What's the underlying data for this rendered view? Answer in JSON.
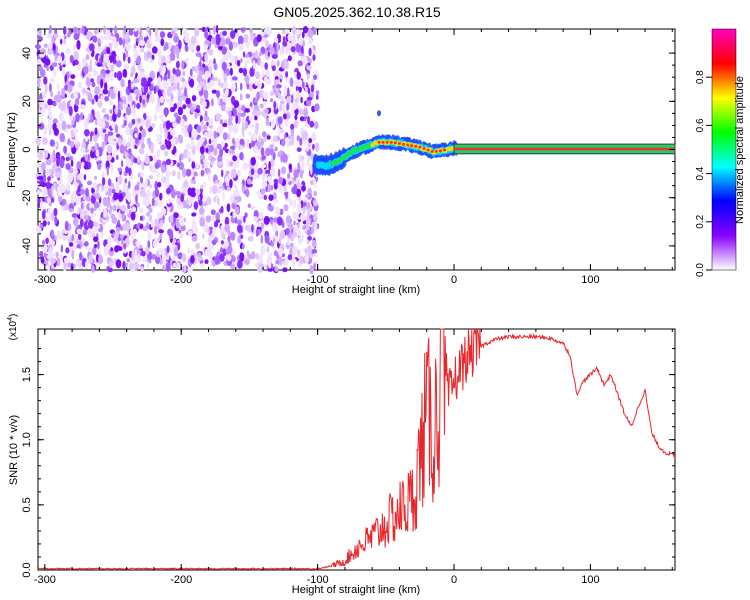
{
  "title": "GN05.2025.362.10.38.R15",
  "colors": {
    "spec_bg": "#ffffff",
    "snr_line": "#e8262b",
    "axis": "#000000",
    "band_outline": "#3a3a3a"
  },
  "chart_data": [
    {
      "type": "heatmap",
      "name": "spectrogram",
      "xlabel": "Height of straight line (km)",
      "ylabel": "Frequency (Hz)",
      "xlim": [
        -305,
        162
      ],
      "ylim": [
        -50,
        50
      ],
      "x_ticks": [
        -300,
        -200,
        -100,
        0,
        100
      ],
      "x_tick_labels": [
        "-300",
        "-200",
        "-100",
        "0",
        "100"
      ],
      "y_ticks": [
        -40,
        -20,
        0,
        20,
        40
      ],
      "y_tick_labels": [
        "-40",
        "-20",
        "0",
        "20",
        "40"
      ],
      "noise_region_km": [
        -305,
        -100
      ],
      "signal_track": {
        "x": [
          -102,
          -95,
          -85,
          -75,
          -65,
          -55,
          -45,
          -35,
          -25,
          -15,
          -5,
          0,
          50,
          100,
          162
        ],
        "y": [
          -6,
          -7,
          -5,
          -1,
          1,
          3,
          3,
          2,
          1,
          -1,
          0,
          0.5,
          0.5,
          0.5,
          0.5
        ]
      },
      "tone_band_hz": [
        -1.2,
        1.6
      ],
      "tone_start_km": 0,
      "colorbar": {
        "label": "Normalized spectral amplitude",
        "range": [
          0,
          1
        ],
        "ticks": [
          0.0,
          0.2,
          0.4,
          0.6,
          0.8
        ],
        "tick_labels": [
          "0.0",
          "0.2",
          "0.4",
          "0.6",
          "0.8"
        ],
        "colors": [
          "#ffffff",
          "#8a00ff",
          "#0000ff",
          "#00ffff",
          "#00ff00",
          "#ffff00",
          "#ff0000",
          "#ff00c0"
        ]
      }
    },
    {
      "type": "line",
      "name": "snr",
      "xlabel": "Height of straight line (km)",
      "ylabel": "SNR (10 * v/v)",
      "scale_label": "(x10",
      "scale_exponent": "4",
      "xlim": [
        -305,
        162
      ],
      "ylim": [
        0,
        1.85
      ],
      "x_ticks": [
        -300,
        -200,
        -100,
        0,
        100
      ],
      "x_tick_labels": [
        "-300",
        "-200",
        "-100",
        "0",
        "100"
      ],
      "y_ticks": [
        0,
        0.5,
        1.0,
        1.5
      ],
      "y_tick_labels": [
        "0.0",
        "0.5",
        "1.0",
        "1.5"
      ],
      "series": [
        {
          "x": [
            -305,
            -200,
            -100,
            -90,
            -80,
            -70,
            -60,
            -50,
            -40,
            -30,
            -25,
            -20,
            -15,
            -10,
            -5,
            0,
            10,
            20,
            30,
            40,
            50,
            60,
            70,
            80,
            85,
            90,
            95,
            100,
            105,
            110,
            115,
            120,
            125,
            130,
            135,
            140,
            145,
            150,
            155,
            162
          ],
          "y": [
            0.01,
            0.01,
            0.01,
            0.03,
            0.07,
            0.18,
            0.25,
            0.35,
            0.45,
            0.55,
            0.85,
            1.2,
            1.05,
            1.4,
            1.3,
            1.45,
            1.65,
            1.72,
            1.77,
            1.79,
            1.79,
            1.79,
            1.78,
            1.74,
            1.65,
            1.35,
            1.45,
            1.5,
            1.55,
            1.42,
            1.5,
            1.35,
            1.2,
            1.1,
            1.25,
            1.38,
            1.05,
            0.95,
            0.9,
            0.88
          ]
        }
      ]
    }
  ]
}
